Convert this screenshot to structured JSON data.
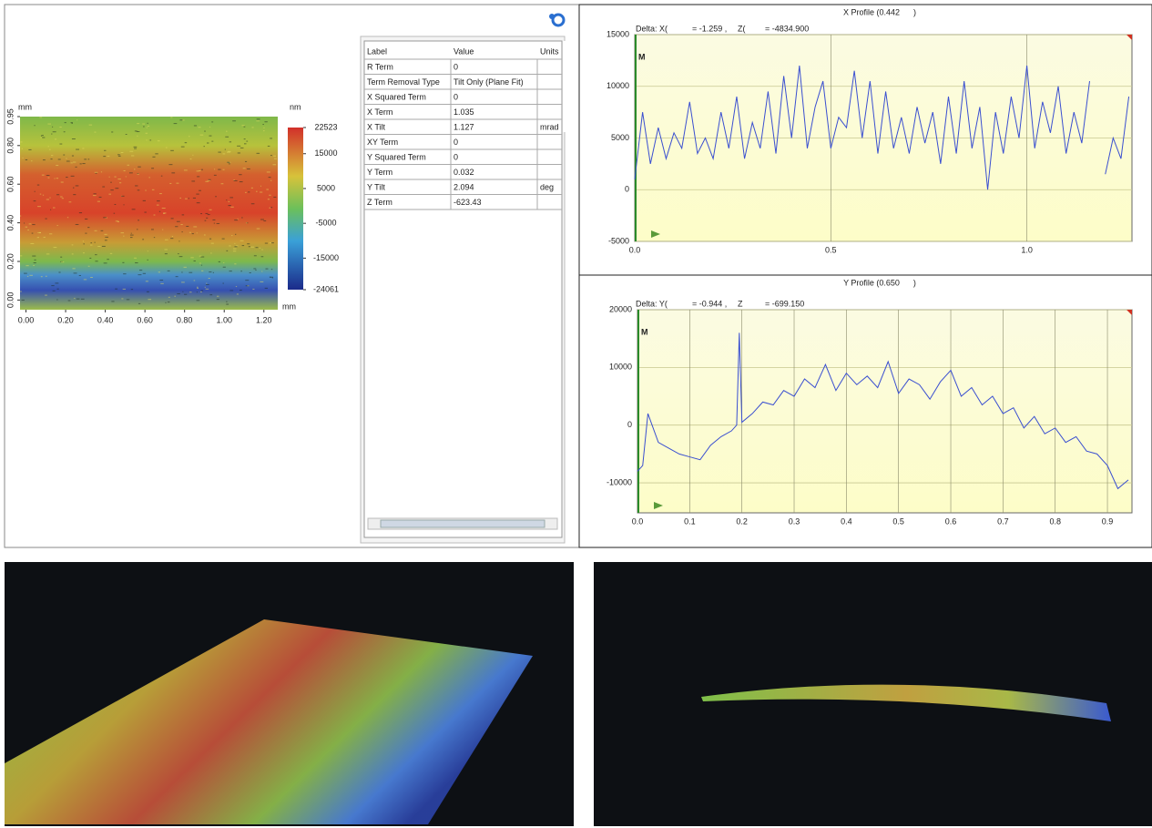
{
  "heatmap": {
    "y_unit": "mm",
    "x_unit": "mm",
    "z_unit": "nm",
    "xlim": [
      -0.03,
      1.27
    ],
    "ylim": [
      -0.05,
      0.95
    ],
    "xticks": [
      {
        "value": 0,
        "label": "0.00"
      },
      {
        "value": 0.2,
        "label": "0.20"
      },
      {
        "value": 0.4,
        "label": "0.40"
      },
      {
        "value": 0.6,
        "label": "0.60"
      },
      {
        "value": 0.8,
        "label": "0.80"
      },
      {
        "value": 1,
        "label": "1.00"
      },
      {
        "value": 1.2,
        "label": "1.20"
      }
    ],
    "yticks": [
      {
        "value": 0,
        "label": "0.00"
      },
      {
        "value": 0.2,
        "label": "0.20"
      },
      {
        "value": 0.4,
        "label": "0.40"
      },
      {
        "value": 0.6,
        "label": "0.60"
      },
      {
        "value": 0.8,
        "label": "0.80"
      },
      {
        "value": 0.95,
        "label": "0.95"
      }
    ],
    "clim": [
      -24061,
      22523
    ],
    "colorbar_ticks": [
      22523,
      15000,
      5000,
      -5000,
      -15000,
      -24061
    ]
  },
  "table": {
    "header": [
      "Label",
      "Value",
      "Units"
    ],
    "rows": [
      [
        "R Term",
        "0"
      ],
      [
        "Term Removal Type",
        "Tilt Only (Plane Fit)"
      ],
      [
        "X Squared Term",
        "0"
      ],
      [
        "X Term",
        "1.035"
      ],
      [
        "X Tilt",
        "1.127",
        "mrad"
      ],
      [
        "XY Term",
        "0"
      ],
      [
        "Y Squared Term",
        "0"
      ],
      [
        "Y Term",
        "0.032"
      ],
      [
        "Y Tilt",
        "2.094",
        "deg"
      ],
      [
        "Z Term",
        "-623.43"
      ]
    ]
  },
  "chart_data": [
    {
      "type": "line",
      "title": "X Profile (0.442      )",
      "delta": [
        "Delta: X(",
        "= -1.259 ,",
        "Z(",
        "= -4834.900"
      ],
      "marker": "M",
      "xlim": [
        0,
        1.268
      ],
      "ylim": [
        -5000,
        15000
      ],
      "xticks": [
        {
          "value": 0,
          "label": "0.0"
        },
        0.5,
        {
          "value": 1,
          "label": "1.0"
        }
      ],
      "yticks": [
        -5000,
        0,
        5000,
        10000,
        15000
      ],
      "grid": true,
      "x": [
        0,
        0.02,
        0.04,
        0.06,
        0.08,
        0.1,
        0.12,
        0.14,
        0.16,
        0.18,
        0.2,
        0.22,
        0.24,
        0.26,
        0.28,
        0.3,
        0.32,
        0.34,
        0.36,
        0.38,
        0.4,
        0.42,
        0.44,
        0.46,
        0.48,
        0.5,
        0.52,
        0.54,
        0.56,
        0.58,
        0.6,
        0.62,
        0.64,
        0.66,
        0.68,
        0.7,
        0.72,
        0.74,
        0.76,
        0.78,
        0.8,
        0.82,
        0.84,
        0.86,
        0.88,
        0.9,
        0.92,
        0.94,
        0.96,
        0.98,
        1,
        1.02,
        1.04,
        1.06,
        1.08,
        1.1,
        1.12,
        1.14,
        1.16,
        1.18,
        1.2,
        1.22,
        1.24,
        1.26
      ],
      "series": [
        {
          "color": "#3a4fd0",
          "values": [
            1000,
            7500,
            2500,
            6000,
            3000,
            5500,
            4000,
            8500,
            3500,
            5000,
            3000,
            7500,
            4000,
            9000,
            3000,
            6500,
            4000,
            9500,
            3500,
            11000,
            5000,
            12000,
            4000,
            8000,
            10500,
            4000,
            7000,
            6000,
            11500,
            5000,
            10500,
            3500,
            9500,
            4000,
            7000,
            3500,
            8000,
            4500,
            7500,
            2500,
            9000,
            3500,
            10500,
            4000,
            8000,
            0,
            7500,
            3500,
            9000,
            5000,
            12000,
            4000,
            8500,
            5500,
            10000,
            3500,
            7500,
            4500,
            10500,
            null,
            1500,
            5000,
            3000,
            9000
          ]
        }
      ]
    },
    {
      "type": "line",
      "title": "Y Profile (0.650      )",
      "delta": [
        "Delta: Y(",
        "= -0.944 ,",
        "Z",
        "= -699.150"
      ],
      "marker": "M",
      "xlim": [
        0,
        0.947
      ],
      "ylim": [
        -15200,
        20000
      ],
      "xticks": [
        {
          "value": 0,
          "label": "0.0"
        },
        0.1,
        0.2,
        0.3,
        0.4,
        0.5,
        0.6,
        0.7,
        0.8,
        0.9
      ],
      "yticks": [
        -10000,
        0,
        10000,
        20000
      ],
      "grid": true,
      "x": [
        0,
        0.01,
        0.02,
        0.04,
        0.06,
        0.08,
        0.1,
        0.12,
        0.14,
        0.16,
        0.18,
        0.19,
        0.195,
        0.2,
        0.22,
        0.24,
        0.26,
        0.28,
        0.3,
        0.32,
        0.34,
        0.36,
        0.38,
        0.4,
        0.42,
        0.44,
        0.46,
        0.48,
        0.5,
        0.52,
        0.54,
        0.56,
        0.58,
        0.6,
        0.62,
        0.64,
        0.66,
        0.68,
        0.7,
        0.72,
        0.74,
        0.76,
        0.78,
        0.8,
        0.82,
        0.84,
        0.86,
        0.88,
        0.9,
        0.92,
        0.94
      ],
      "series": [
        {
          "color": "#3a4fd0",
          "values": [
            -8000,
            -7000,
            2000,
            -3000,
            -4000,
            -5000,
            -5500,
            -6000,
            -3500,
            -2000,
            -1000,
            0,
            16000,
            500,
            2000,
            4000,
            3500,
            6000,
            5000,
            8000,
            6500,
            10500,
            6000,
            9000,
            7000,
            8500,
            6500,
            11000,
            5500,
            8000,
            7000,
            4500,
            7500,
            9500,
            5000,
            6500,
            3500,
            5000,
            2000,
            3000,
            -500,
            1500,
            -1500,
            -500,
            -3000,
            -2000,
            -4500,
            -5000,
            -7000,
            -11000,
            -9500
          ]
        }
      ]
    }
  ]
}
